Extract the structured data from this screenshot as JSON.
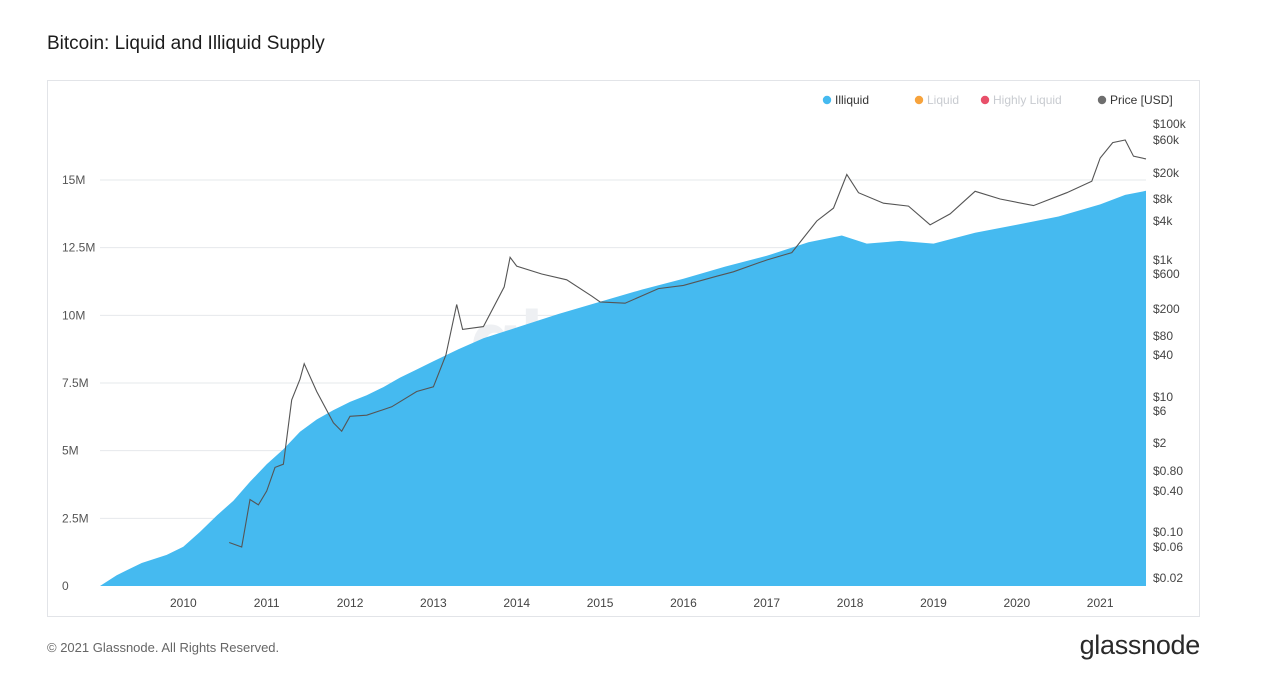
{
  "title": "Bitcoin: Liquid and Illiquid Supply",
  "footer": {
    "copyright": "© 2021 Glassnode. All Rights Reserved.",
    "brand": "glassnode"
  },
  "watermark": "glassnode",
  "colors": {
    "illiquid": "#45baf0",
    "liquid": "#f7a33c",
    "highly_liquid": "#e8506a",
    "price": "#6e6e6e",
    "grid": "#e6e8eb"
  },
  "chart_data": {
    "type": "area",
    "title": "Bitcoin: Liquid and Illiquid Supply",
    "legend_position": "top-right",
    "grid": true,
    "x_ticks": [
      "2010",
      "2011",
      "2012",
      "2013",
      "2014",
      "2015",
      "2016",
      "2017",
      "2018",
      "2019",
      "2020",
      "2021"
    ],
    "x_range": [
      2009.0,
      2021.55
    ],
    "y_left": {
      "ticks": [
        "0",
        "2.5M",
        "5M",
        "7.5M",
        "10M",
        "12.5M",
        "15M"
      ],
      "range": [
        0,
        15000000
      ],
      "scale": "linear"
    },
    "y_right": {
      "ticks": [
        "$100k",
        "$60k",
        "$20k",
        "$8k",
        "$4k",
        "$1k",
        "$600",
        "$200",
        "$80",
        "$40",
        "$10",
        "$6",
        "$2",
        "$0.80",
        "$0.40",
        "$0.10",
        "$0.06",
        "$0.02"
      ],
      "scale": "log",
      "unit": "USD"
    },
    "legend": [
      {
        "name": "Illiquid",
        "color": "#45baf0",
        "active": true
      },
      {
        "name": "Liquid",
        "color": "#f7a33c",
        "active": false
      },
      {
        "name": "Highly Liquid",
        "color": "#e8506a",
        "active": false
      },
      {
        "name": "Price [USD]",
        "color": "#6e6e6e",
        "active": true
      }
    ],
    "series": [
      {
        "name": "Illiquid",
        "type": "area",
        "axis": "left",
        "x": [
          2009.0,
          2009.2,
          2009.5,
          2009.8,
          2010.0,
          2010.2,
          2010.4,
          2010.6,
          2010.8,
          2011.0,
          2011.2,
          2011.4,
          2011.6,
          2011.8,
          2012.0,
          2012.2,
          2012.4,
          2012.6,
          2012.8,
          2013.0,
          2013.3,
          2013.6,
          2014.0,
          2014.5,
          2015.0,
          2015.5,
          2016.0,
          2016.5,
          2017.0,
          2017.5,
          2017.9,
          2018.2,
          2018.6,
          2019.0,
          2019.5,
          2020.0,
          2020.5,
          2021.0,
          2021.3,
          2021.55
        ],
        "values": [
          0,
          400000,
          850000,
          1150000,
          1450000,
          2000000,
          2600000,
          3150000,
          3850000,
          4500000,
          5050000,
          5700000,
          6150000,
          6500000,
          6800000,
          7050000,
          7350000,
          7700000,
          8000000,
          8300000,
          8750000,
          9150000,
          9550000,
          10050000,
          10500000,
          10950000,
          11350000,
          11800000,
          12200000,
          12700000,
          12950000,
          12650000,
          12750000,
          12650000,
          13050000,
          13350000,
          13650000,
          14100000,
          14450000,
          14600000
        ]
      },
      {
        "name": "Price [USD]",
        "type": "line",
        "axis": "right",
        "x": [
          2010.55,
          2010.7,
          2010.8,
          2010.9,
          2011.0,
          2011.1,
          2011.2,
          2011.3,
          2011.4,
          2011.45,
          2011.6,
          2011.8,
          2011.9,
          2012.0,
          2012.2,
          2012.5,
          2012.8,
          2013.0,
          2013.15,
          2013.28,
          2013.35,
          2013.6,
          2013.85,
          2013.92,
          2014.0,
          2014.3,
          2014.6,
          2014.9,
          2015.0,
          2015.3,
          2015.7,
          2016.0,
          2016.4,
          2016.6,
          2016.9,
          2017.0,
          2017.3,
          2017.6,
          2017.8,
          2017.96,
          2018.1,
          2018.4,
          2018.7,
          2018.96,
          2019.2,
          2019.5,
          2019.8,
          2020.2,
          2020.6,
          2020.9,
          2021.0,
          2021.15,
          2021.3,
          2021.4,
          2021.55
        ],
        "values": [
          0.07,
          0.06,
          0.3,
          0.25,
          0.4,
          0.9,
          1,
          9,
          18,
          30,
          12,
          4,
          3,
          5,
          5.2,
          7,
          12,
          14,
          40,
          230,
          100,
          110,
          400,
          1100,
          800,
          600,
          500,
          300,
          250,
          240,
          380,
          420,
          560,
          650,
          900,
          1000,
          1300,
          4000,
          6000,
          19000,
          10000,
          7000,
          6400,
          3500,
          5000,
          10500,
          8000,
          6500,
          10000,
          15000,
          33000,
          55000,
          60000,
          35000,
          32000
        ]
      }
    ]
  }
}
